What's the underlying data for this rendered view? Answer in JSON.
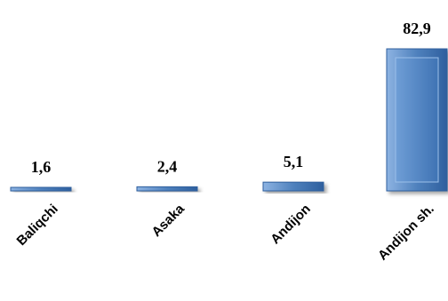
{
  "chart_data": {
    "type": "bar",
    "categories": [
      "Baliqchi",
      "Asaka",
      "Andijon",
      "Andijon sh."
    ],
    "values": [
      1.6,
      2.4,
      5.1,
      82.9
    ],
    "value_labels": [
      "1,6",
      "2,4",
      "5,1",
      "82,9"
    ],
    "title": "",
    "xlabel": "",
    "ylabel": "",
    "ylim": [
      0,
      82.9
    ],
    "grid": false,
    "legend": "none",
    "colors": {
      "bar_fill": "#4f81bd",
      "bar_light": "#8db3e2",
      "bar_dark": "#2e5f9e"
    }
  }
}
